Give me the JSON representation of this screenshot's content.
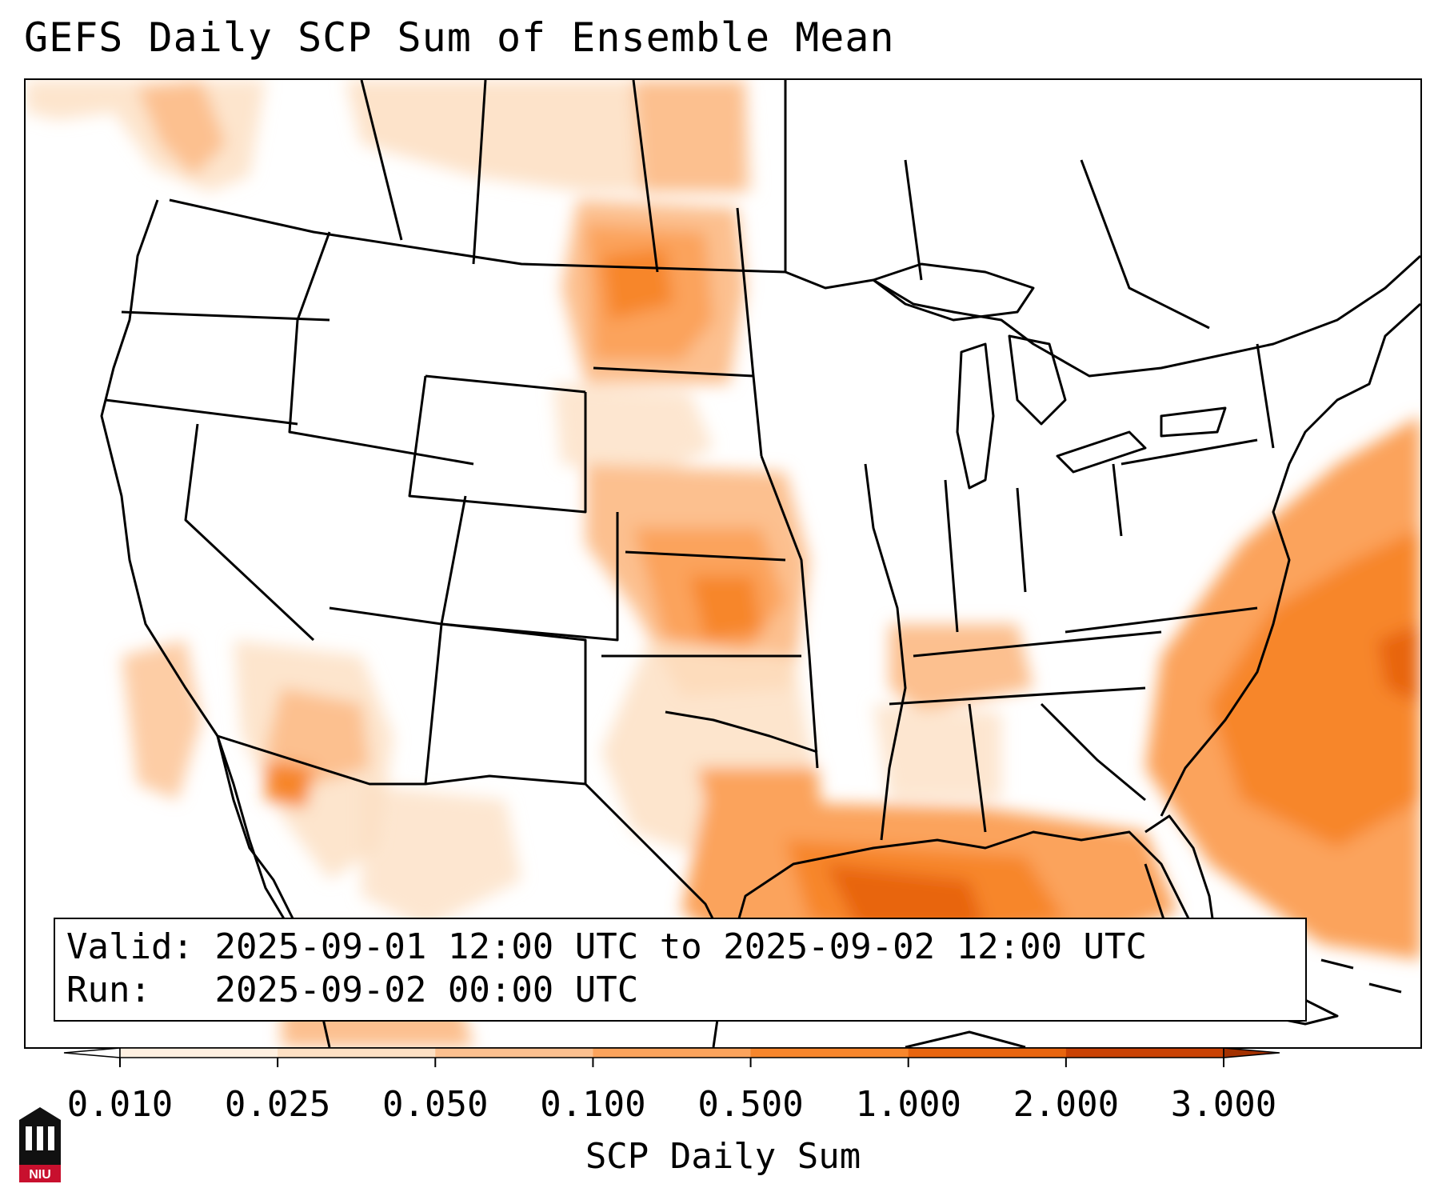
{
  "title": "GEFS Daily SCP Sum of Ensemble Mean",
  "info": {
    "valid_label": "Valid:",
    "valid_value": "2025-09-01 12:00 UTC to 2025-09-02 12:00 UTC",
    "run_label": "Run:",
    "run_value": "2025-09-02 00:00 UTC"
  },
  "colorbar": {
    "label": "SCP Daily Sum",
    "ticks": [
      "0.010",
      "0.025",
      "0.050",
      "0.100",
      "0.500",
      "1.000",
      "2.000",
      "3.000"
    ],
    "colors": [
      "#fff0e1",
      "#fde0c4",
      "#fcc08f",
      "#fba35c",
      "#f7862c",
      "#e8650f",
      "#c94204"
    ],
    "under_color": "#ffffff",
    "over_color": "#a33100"
  },
  "logo": {
    "text": "NIU",
    "icon": "university-tower-logo"
  },
  "colors": {
    "level1": "#fff0e1",
    "level2": "#fde0c4",
    "level3": "#fcc08f",
    "level4": "#fba35c",
    "level5": "#f7862c",
    "level6": "#e8650f"
  }
}
